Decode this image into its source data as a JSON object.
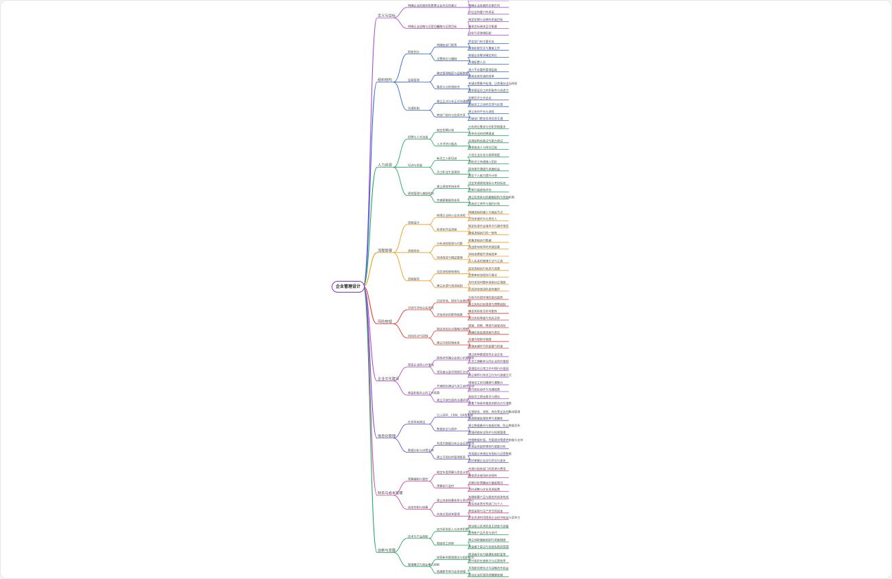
{
  "root": {
    "label": "企业管理设计"
  },
  "branches": [
    {
      "label": "定义与目标",
      "color": "#a64bd4",
      "children": [
        {
          "label": "明确企业的使命和愿景",
          "children": [
            {
              "label": "企业存在的意义",
              "children": [
                "确立企业的核心价值观",
                "明确企业发展的长期方向",
                "对社会和客户的承诺"
              ]
            }
          ]
        },
        {
          "label": "明确企业战略与运营目标",
          "children": [
            {
              "label": "战略与运营目标",
              "children": [
                "制定短期与长期的发展目标",
                "确保目标具体且可衡量",
                "目标与资源相匹配"
              ]
            }
          ]
        }
      ]
    },
    {
      "label": "组织结构",
      "color": "#2e62d9",
      "children": [
        {
          "label": "职能划分",
          "children": [
            {
              "label": "明确各部门职责",
              "children": [
                "界定部门的主要任务",
                "避免职能交叉与重复工作"
              ]
            },
            {
              "label": "设置岗位与编制",
              "children": [
                "根据业务需求确定岗位",
                "合理配置人员"
              ]
            }
          ]
        },
        {
          "label": "层级管理",
          "children": [
            {
              "label": "确定管理幅度与层级数量",
              "children": [
                "减少不必要的管理层级",
                "提高信息传递的效率"
              ]
            },
            {
              "label": "集权与分权相结合",
              "children": [
                "关键决策集中处理，日常事务适当授权",
                "激发基层员工的积极性与创造力"
              ]
            }
          ]
        },
        {
          "label": "沟通机制",
          "children": [
            {
              "label": "建立正式与非正式沟通渠道",
              "children": [
                "定期召开工作会议",
                "鼓励员工之间的交流与反馈"
              ]
            },
            {
              "label": "跨部门协作与信息共享",
              "children": [
                "建立协作平台与流程",
                "打破部门壁垒实现信息互通"
              ]
            }
          ]
        }
      ]
    },
    {
      "label": "人力资源",
      "color": "#1fa65a",
      "children": [
        {
          "label": "招聘与人才选拔",
          "children": [
            {
              "label": "制定招聘计划",
              "children": [
                "分析岗位需求与任职资格要求",
                "选择合适的招聘渠道"
              ]
            },
            {
              "label": "人才评估与甄选",
              "children": [
                "采用结构化面试与能力测试",
                "确保候选人与岗位匹配"
              ]
            }
          ]
        },
        {
          "label": "培训与发展",
          "children": [
            {
              "label": "新员工入职培训",
              "children": [
                "介绍企业文化与规章制度",
                "帮助员工快速融入团队"
              ]
            },
            {
              "label": "员工职业生涯规划",
              "children": [
                "提供晋升通道与发展机会",
                "制定个人能力提升计划"
              ]
            }
          ]
        },
        {
          "label": "绩效管理与激励机制",
          "children": [
            {
              "label": "建立绩效考核体系",
              "children": [
                "设定关键绩效指标与考核标准",
                "定期开展绩效评估"
              ]
            },
            {
              "label": "完善薪酬福利体系",
              "children": [
                "建立有竞争力的薪酬结构与奖励机制",
                "实施员工关怀与福利计划"
              ]
            }
          ]
        }
      ]
    },
    {
      "label": "流程管理",
      "color": "#f09a1a",
      "children": [
        {
          "label": "流程设计",
          "children": [
            {
              "label": "梳理企业核心业务流程",
              "children": [
                "明确流程的输入与输出节点",
                "识别关键环节与责任人"
              ]
            },
            {
              "label": "标准化作业流程",
              "children": [
                "制定标准作业指导书与操作规范",
                "确保流程执行的一致性"
              ]
            }
          ]
        },
        {
          "label": "流程优化",
          "children": [
            {
              "label": "分析流程瓶颈与问题",
              "children": [
                "收集流程运行数据",
                "找出影响效率的关键因素"
              ]
            },
            {
              "label": "持续改进与精益管理",
              "children": [
                "消除浪费提升流程效率",
                "引入先进的管理方法与工具"
              ]
            }
          ]
        },
        {
          "label": "流程监控",
          "children": [
            {
              "label": "设定流程绩效指标",
              "children": [
                "监控流程运行状态与效果",
                "定期审核流程执行情况"
              ]
            },
            {
              "label": "建立反馈与改进机制",
              "children": [
                "及时发现问题并采取纠正措施",
                "形成持续改进的良性循环"
              ]
            }
          ]
        }
      ]
    },
    {
      "label": "风险管理",
      "color": "#e8382b",
      "children": [
        {
          "label": "识别与评估企业风险",
          "children": [
            {
              "label": "识别市场、财务与运营风险",
              "children": [
                "分析内外部环境的变化趋势",
                "建立风险识别清单与预警机制"
              ]
            },
            {
              "label": "评估风险的影响程度",
              "children": [
                "确定风险发生的可能性",
                "划分风险等级与优先次序"
              ]
            }
          ]
        },
        {
          "label": "风险应对与控制",
          "children": [
            {
              "label": "制定风险应对策略与预案",
              "children": [
                "规避、转移、降低与接受风险",
                "明确应急处理流程与责任"
              ]
            },
            {
              "label": "建立内部控制体系",
              "children": [
                "完善内部审计制度",
                "加强关键环节的监督与检查"
              ]
            }
          ]
        }
      ]
    },
    {
      "label": "企业文化建设",
      "color": "#b24ad8",
      "children": [
        {
          "label": "塑造企业核心价值观",
          "children": [
            {
              "label": "提炼并传播企业核心价值理念",
              "children": [
                "通过各种渠道宣传企业文化",
                "让员工理解并认同企业的价值观"
              ]
            },
            {
              "label": "领导者以身作则践行文化",
              "children": [
                "管理层在日常工作中践行价值观",
                "树立榜样引导员工行为与思维方式"
              ]
            }
          ]
        },
        {
          "label": "营造积极向上的工作氛围",
          "children": [
            {
              "label": "开展团队建设与员工关怀活动",
              "children": [
                "增强员工的归属感与凝聚力",
                "提升团队协作与沟通效果"
              ]
            },
            {
              "label": "建立开放包容的沟通环境",
              "children": [
                "鼓励员工提出意见与建议",
                "尊重个体差异激发创新活力与潜能"
              ]
            }
          ]
        }
      ]
    },
    {
      "label": "信息化管理",
      "color": "#6d4fd8",
      "children": [
        {
          "label": "信息系统建设",
          "children": [
            {
              "label": "引入ERP、CRM、OA等系统",
              "children": [
                "实现财务、采购、库存等业务的集成管理",
                "提高数据处理效率与准确性"
              ]
            },
            {
              "label": "数据安全与保护",
              "children": [
                "建立数据备份与恢复机制，防止数据丢失",
                "加强网络安全防护与权限管理"
              ]
            }
          ]
        },
        {
          "label": "数据分析与决策支持",
          "children": [
            {
              "label": "利用大数据分析企业运营状况",
              "children": [
                "挖掘数据价值，为管理决策提供依据与支持",
                "实现业务趋势预测与智能分析"
              ]
            },
            {
              "label": "建立可视化的管理报表",
              "children": [
                "直观展示关键业务指标与运营数据",
                "实时掌握企业运行状况与变化"
              ]
            }
          ]
        }
      ]
    },
    {
      "label": "财务与成本管理",
      "color": "#d63fa0",
      "children": [
        {
          "label": "预算编制与管控",
          "children": [
            {
              "label": "制定年度预算与资金计划",
              "children": [
                "合理分配各部门的资源与费用",
                "确保资金使用的合理性"
              ]
            },
            {
              "label": "预算执行监控",
              "children": [
                "定期分析预算执行偏差情况",
                "及时调整与优化资源配置"
              ]
            }
          ]
        },
        {
          "label": "成本控制与核算",
          "children": [
            {
              "label": "建立成本核算体系与责任中心",
              "children": [
                "准确核算产品与服务的成本构成",
                "落实成本责任到部门与个人"
              ]
            },
            {
              "label": "实施全面成本管理",
              "children": [
                "降低采购与生产环节的成本",
                "优化资源利用提高企业经济效益与竞争力"
              ]
            }
          ]
        }
      ]
    },
    {
      "label": "创新与发展",
      "color": "#1fa85c",
      "children": [
        {
          "label": "技术与产品创新",
          "children": [
            {
              "label": "加大研发投入与技术积累",
              "children": [
                "推动核心技术的自主研发与突破",
                "加快新产品开发与迭代"
              ]
            },
            {
              "label": "鼓励员工创新",
              "children": [
                "建立创新激励机制与奖励制度",
                "营造敢于尝试与包容失败的氛围"
              ]
            }
          ]
        },
        {
          "label": "管理模式与商业模式创新",
          "children": [
            {
              "label": "探索新的管理理念与组织形式",
              "children": [
                "推进扁平化与敏捷化组织变革",
                "提升组织应变能力与运营效率"
              ]
            },
            {
              "label": "拓展新市场与业务领域",
              "children": [
                "寻找新的增长点与战略合作机会",
                "推动企业实现持续健康发展"
              ]
            }
          ]
        }
      ]
    }
  ]
}
